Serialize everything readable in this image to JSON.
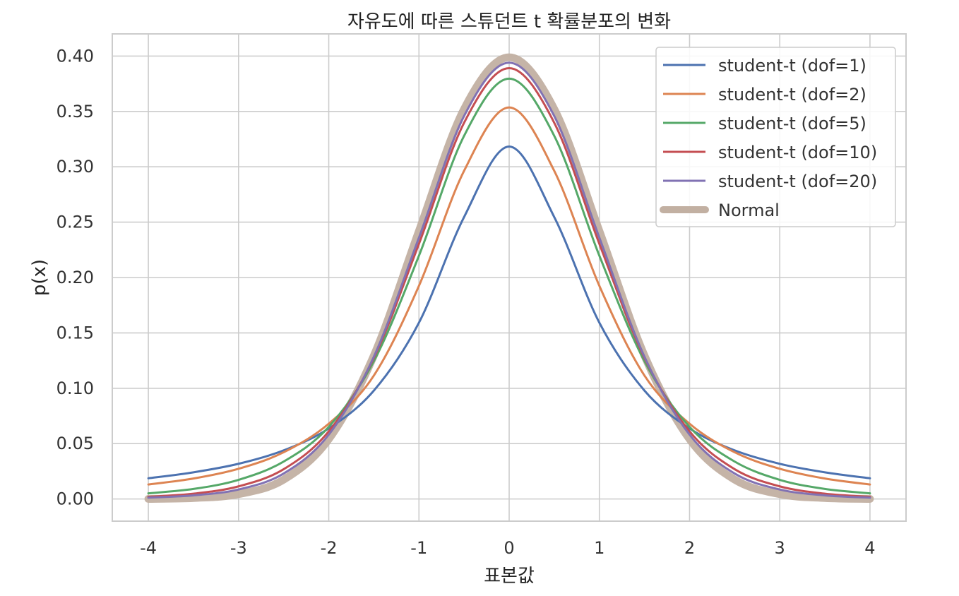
{
  "chart_data": {
    "type": "line",
    "title": "자유도에 따른 스튜던트 t 확률분포의 변화",
    "xlabel": "표본값",
    "ylabel": "p(x)",
    "xlim": [
      -4.4,
      4.4
    ],
    "ylim": [
      -0.02,
      0.42
    ],
    "x_ticks": [
      -4,
      -3,
      -2,
      -1,
      0,
      1,
      2,
      3,
      4
    ],
    "x_tick_labels": [
      "-4",
      "-3",
      "-2",
      "-1",
      "0",
      "1",
      "2",
      "3",
      "4"
    ],
    "y_ticks": [
      0.0,
      0.05,
      0.1,
      0.15,
      0.2,
      0.25,
      0.3,
      0.35,
      0.4
    ],
    "y_tick_labels": [
      "0.00",
      "0.05",
      "0.10",
      "0.15",
      "0.20",
      "0.25",
      "0.30",
      "0.35",
      "0.40"
    ],
    "grid": true,
    "legend_position": "top-right",
    "x": [
      -4.0,
      -3.5,
      -3.0,
      -2.5,
      -2.0,
      -1.5,
      -1.0,
      -0.5,
      0.0,
      0.5,
      1.0,
      1.5,
      2.0,
      2.5,
      3.0,
      3.5,
      4.0
    ],
    "series": [
      {
        "name": "student-t (dof=1)",
        "color": "#4c72b0",
        "values": [
          0.0187,
          0.0241,
          0.0318,
          0.0439,
          0.0637,
          0.0979,
          0.1592,
          0.2546,
          0.3183,
          0.2546,
          0.1592,
          0.0979,
          0.0637,
          0.0439,
          0.0318,
          0.0241,
          0.0187
        ]
      },
      {
        "name": "student-t (dof=2)",
        "color": "#dd8452",
        "values": [
          0.0131,
          0.0185,
          0.0273,
          0.0422,
          0.068,
          0.1115,
          0.1925,
          0.2963,
          0.3536,
          0.2963,
          0.1925,
          0.1115,
          0.068,
          0.0422,
          0.0273,
          0.0185,
          0.0131
        ]
      },
      {
        "name": "student-t (dof=5)",
        "color": "#55a868",
        "values": [
          0.0051,
          0.0091,
          0.0173,
          0.0338,
          0.0651,
          0.1245,
          0.2197,
          0.3279,
          0.3796,
          0.3279,
          0.2197,
          0.1245,
          0.0651,
          0.0338,
          0.0173,
          0.0091,
          0.0051
        ]
      },
      {
        "name": "student-t (dof=10)",
        "color": "#c44e52",
        "values": [
          0.002,
          0.0048,
          0.0114,
          0.0269,
          0.0611,
          0.1274,
          0.2304,
          0.3397,
          0.3891,
          0.3397,
          0.2304,
          0.1274,
          0.0611,
          0.0269,
          0.0114,
          0.0048,
          0.002
        ]
      },
      {
        "name": "student-t (dof=20)",
        "color": "#8172b3",
        "values": [
          0.0012,
          0.0033,
          0.0086,
          0.023,
          0.0581,
          0.1285,
          0.236,
          0.3458,
          0.394,
          0.3458,
          0.236,
          0.1285,
          0.0581,
          0.023,
          0.0086,
          0.0033,
          0.0012
        ]
      },
      {
        "name": "Normal",
        "color": "#c2b0a2",
        "values": [
          0.0001,
          0.0009,
          0.0044,
          0.0175,
          0.054,
          0.1295,
          0.242,
          0.3521,
          0.3989,
          0.3521,
          0.242,
          0.1295,
          0.054,
          0.0175,
          0.0044,
          0.0009,
          0.0001
        ]
      }
    ]
  }
}
